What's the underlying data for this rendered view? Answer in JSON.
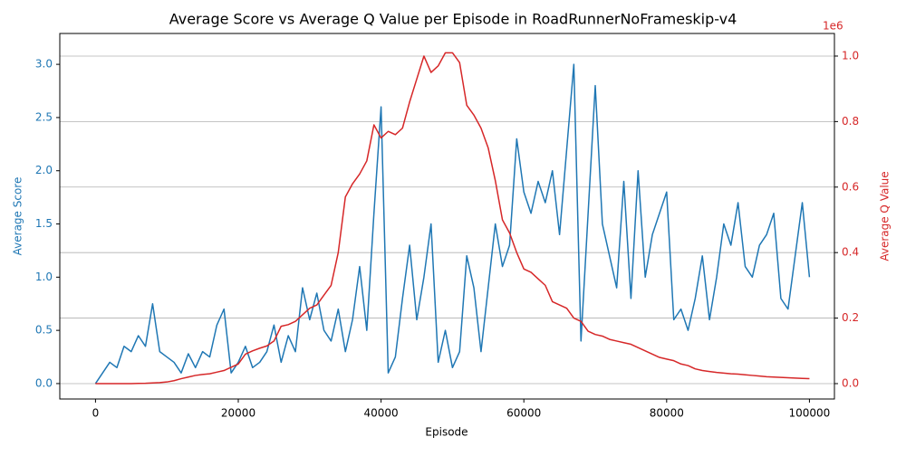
{
  "chart_data": {
    "type": "line",
    "title": "Average Score vs Average Q Value per Episode in RoadRunnerNoFrameskip-v4",
    "x_label": "Episode",
    "y_label": "Average Score",
    "y2_label": "Average Q Value",
    "y2_offset_label": "1e6",
    "x": [
      0,
      1000,
      2000,
      3000,
      4000,
      5000,
      6000,
      7000,
      8000,
      9000,
      10000,
      11000,
      12000,
      13000,
      14000,
      15000,
      16000,
      17000,
      18000,
      19000,
      20000,
      21000,
      22000,
      23000,
      24000,
      25000,
      26000,
      27000,
      28000,
      29000,
      30000,
      31000,
      32000,
      33000,
      34000,
      35000,
      36000,
      37000,
      38000,
      39000,
      40000,
      41000,
      42000,
      43000,
      44000,
      45000,
      46000,
      47000,
      48000,
      49000,
      50000,
      51000,
      52000,
      53000,
      54000,
      55000,
      56000,
      57000,
      58000,
      59000,
      60000,
      61000,
      62000,
      63000,
      64000,
      65000,
      66000,
      67000,
      68000,
      69000,
      70000,
      71000,
      72000,
      73000,
      74000,
      75000,
      76000,
      77000,
      78000,
      79000,
      80000,
      81000,
      82000,
      83000,
      84000,
      85000,
      86000,
      87000,
      88000,
      89000,
      90000,
      91000,
      92000,
      93000,
      94000,
      95000,
      96000,
      97000,
      98000,
      99000,
      100000
    ],
    "series": [
      {
        "name": "Average Score",
        "color": "#1f77b4",
        "axis": "y",
        "values": [
          0,
          0.1,
          0.2,
          0.15,
          0.35,
          0.3,
          0.45,
          0.35,
          0.75,
          0.3,
          0.25,
          0.2,
          0.1,
          0.28,
          0.15,
          0.3,
          0.25,
          0.55,
          0.7,
          0.1,
          0.2,
          0.35,
          0.15,
          0.2,
          0.3,
          0.55,
          0.2,
          0.45,
          0.3,
          0.9,
          0.6,
          0.85,
          0.5,
          0.4,
          0.7,
          0.3,
          0.6,
          1.1,
          0.5,
          1.6,
          2.6,
          0.1,
          0.25,
          0.8,
          1.3,
          0.6,
          1.0,
          1.5,
          0.2,
          0.5,
          0.15,
          0.3,
          1.2,
          0.9,
          0.3,
          0.9,
          1.5,
          1.1,
          1.3,
          2.3,
          1.8,
          1.6,
          1.9,
          1.7,
          2.0,
          1.4,
          2.2,
          3.0,
          0.4,
          1.6,
          2.8,
          1.5,
          1.2,
          0.9,
          1.9,
          0.8,
          2.0,
          1.0,
          1.4,
          1.6,
          1.8,
          0.6,
          0.7,
          0.5,
          0.8,
          1.2,
          0.6,
          1.0,
          1.5,
          1.3,
          1.7,
          1.1,
          1.0,
          1.3,
          1.4,
          1.6,
          0.8,
          0.7,
          1.2,
          1.7,
          1.0
        ]
      },
      {
        "name": "Average Q Value",
        "color": "#d62728",
        "axis": "y2",
        "values": [
          0,
          0,
          0,
          0,
          0,
          0,
          500,
          1000,
          2000,
          3000,
          5000,
          9000,
          15000,
          20000,
          25000,
          28000,
          30000,
          35000,
          40000,
          50000,
          60000,
          90000,
          100000,
          108000,
          115000,
          130000,
          175000,
          180000,
          190000,
          210000,
          230000,
          240000,
          270000,
          300000,
          400000,
          570000,
          610000,
          640000,
          680000,
          790000,
          750000,
          770000,
          760000,
          780000,
          860000,
          930000,
          1000000,
          950000,
          970000,
          1010000,
          1010000,
          980000,
          850000,
          820000,
          780000,
          720000,
          620000,
          500000,
          460000,
          400000,
          350000,
          340000,
          320000,
          300000,
          250000,
          240000,
          230000,
          200000,
          190000,
          160000,
          150000,
          145000,
          135000,
          130000,
          125000,
          120000,
          110000,
          100000,
          90000,
          80000,
          75000,
          70000,
          60000,
          55000,
          45000,
          40000,
          37000,
          34000,
          32000,
          30000,
          29000,
          27000,
          25000,
          23000,
          21000,
          20000,
          19000,
          18000,
          17000,
          16000,
          15000
        ]
      }
    ],
    "xlim": [
      -5000,
      103500
    ],
    "xticks": [
      0,
      20000,
      40000,
      60000,
      80000,
      100000
    ],
    "ylim": [
      -0.145,
      3.29
    ],
    "yticks": [
      {
        "value": 0,
        "label": "0.0"
      },
      {
        "value": 0.5,
        "label": "0.5"
      },
      {
        "value": 1,
        "label": "1.0"
      },
      {
        "value": 1.5,
        "label": "1.5"
      },
      {
        "value": 2,
        "label": "2.0"
      },
      {
        "value": 2.5,
        "label": "2.5"
      },
      {
        "value": 3,
        "label": "3.0"
      }
    ],
    "y2lim": [
      -47000,
      1069000
    ],
    "y2ticks": [
      {
        "value": 0,
        "label": "0.0"
      },
      {
        "value": 200000,
        "label": "0.2"
      },
      {
        "value": 400000,
        "label": "0.4"
      },
      {
        "value": 600000,
        "label": "0.6"
      },
      {
        "value": 800000,
        "label": "0.8"
      },
      {
        "value": 1000000,
        "label": "1.0"
      }
    ],
    "grid": "y2"
  }
}
